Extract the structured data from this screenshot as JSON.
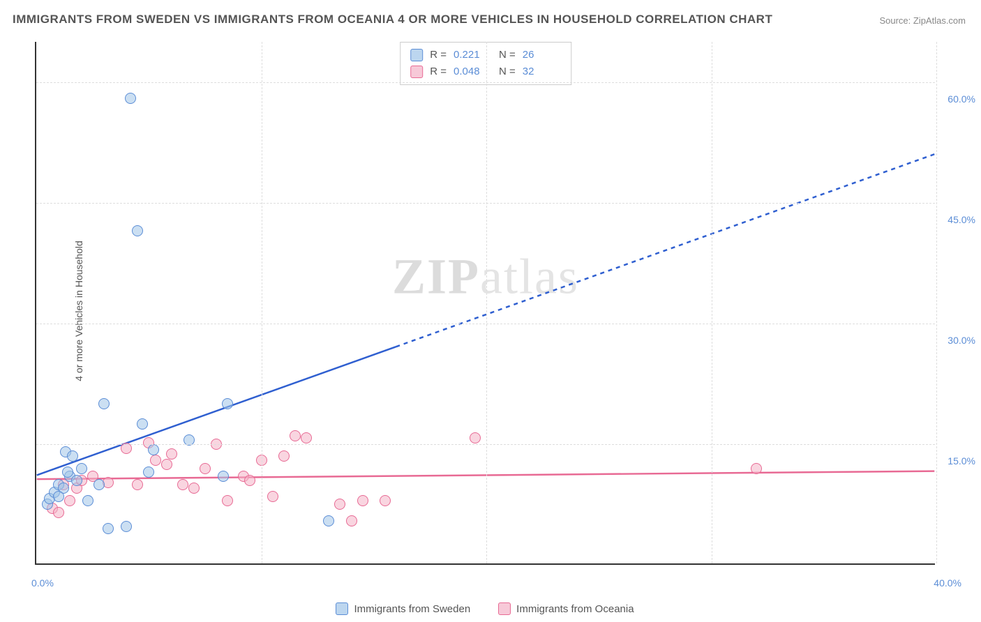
{
  "title": "IMMIGRANTS FROM SWEDEN VS IMMIGRANTS FROM OCEANIA 4 OR MORE VEHICLES IN HOUSEHOLD CORRELATION CHART",
  "source_prefix": "Source: ",
  "source_name": "ZipAtlas.com",
  "y_axis_label": "4 or more Vehicles in Household",
  "watermark_bold": "ZIP",
  "watermark_light": "atlas",
  "colors": {
    "sweden_fill": "rgba(160,197,232,0.55)",
    "sweden_stroke": "#5b8dd6",
    "oceania_fill": "rgba(244,178,199,0.55)",
    "oceania_stroke": "#e86a94",
    "sweden_line": "#2f5fd0",
    "oceania_line": "#e86a94",
    "grid": "#dddddd",
    "axis": "#333333",
    "text": "#555555",
    "tick_text": "#5b8dd6",
    "background": "#ffffff"
  },
  "chart": {
    "type": "scatter",
    "xlim": [
      0,
      40
    ],
    "ylim": [
      0,
      65
    ],
    "x_ticks": [
      0,
      10,
      20,
      30,
      40
    ],
    "x_tick_labels": [
      "0.0%",
      "",
      "",
      "",
      "40.0%"
    ],
    "y_ticks": [
      15,
      30,
      45,
      60
    ],
    "y_tick_labels": [
      "15.0%",
      "30.0%",
      "45.0%",
      "60.0%"
    ],
    "marker_size": 16,
    "marker_opacity": 0.55,
    "grid_dash": "4,4"
  },
  "stat_legend": {
    "r_label": "R =",
    "n_label": "N =",
    "rows": [
      {
        "series": "sweden",
        "r": "0.221",
        "n": "26"
      },
      {
        "series": "oceania",
        "r": "0.048",
        "n": "32"
      }
    ]
  },
  "bottom_legend": [
    {
      "series": "sweden",
      "label": "Immigrants from Sweden"
    },
    {
      "series": "oceania",
      "label": "Immigrants from Oceania"
    }
  ],
  "series": {
    "sweden": {
      "points": [
        [
          0.5,
          7.5
        ],
        [
          0.6,
          8.2
        ],
        [
          0.8,
          9.0
        ],
        [
          1.0,
          10.0
        ],
        [
          1.2,
          9.5
        ],
        [
          1.3,
          14.0
        ],
        [
          1.5,
          11.0
        ],
        [
          1.6,
          13.5
        ],
        [
          1.8,
          10.5
        ],
        [
          2.0,
          12.0
        ],
        [
          2.3,
          8.0
        ],
        [
          2.8,
          10.0
        ],
        [
          3.0,
          20.0
        ],
        [
          3.2,
          4.5
        ],
        [
          4.0,
          4.8
        ],
        [
          4.2,
          58.0
        ],
        [
          4.5,
          41.5
        ],
        [
          4.7,
          17.5
        ],
        [
          5.0,
          11.5
        ],
        [
          5.2,
          14.3
        ],
        [
          6.8,
          15.5
        ],
        [
          8.5,
          20.0
        ],
        [
          8.3,
          11.0
        ],
        [
          13.0,
          5.5
        ],
        [
          1.0,
          8.5
        ],
        [
          1.4,
          11.5
        ]
      ],
      "trend": {
        "x1": 0,
        "y1": 11.0,
        "x2_solid": 16.0,
        "y2_solid": 27.0,
        "x2_dash": 40.0,
        "y2_dash": 51.0,
        "width": 2.5
      }
    },
    "oceania": {
      "points": [
        [
          0.7,
          7.0
        ],
        [
          1.0,
          6.5
        ],
        [
          1.2,
          10.0
        ],
        [
          1.5,
          8.0
        ],
        [
          1.8,
          9.5
        ],
        [
          2.0,
          10.5
        ],
        [
          2.5,
          11.0
        ],
        [
          3.2,
          10.2
        ],
        [
          4.0,
          14.5
        ],
        [
          4.5,
          10.0
        ],
        [
          5.0,
          15.2
        ],
        [
          5.3,
          13.0
        ],
        [
          5.8,
          12.5
        ],
        [
          6.0,
          13.8
        ],
        [
          6.5,
          10.0
        ],
        [
          7.0,
          9.5
        ],
        [
          7.5,
          12.0
        ],
        [
          8.0,
          15.0
        ],
        [
          8.5,
          8.0
        ],
        [
          9.2,
          11.0
        ],
        [
          9.5,
          10.5
        ],
        [
          10.0,
          13.0
        ],
        [
          10.5,
          8.5
        ],
        [
          11.0,
          13.5
        ],
        [
          11.5,
          16.0
        ],
        [
          12.0,
          15.8
        ],
        [
          13.5,
          7.5
        ],
        [
          14.0,
          5.5
        ],
        [
          14.5,
          8.0
        ],
        [
          15.5,
          8.0
        ],
        [
          19.5,
          15.8
        ],
        [
          32.0,
          12.0
        ]
      ],
      "trend": {
        "x1": 0,
        "y1": 10.5,
        "x2_solid": 40.0,
        "y2_solid": 11.5,
        "x2_dash": 40.0,
        "y2_dash": 11.5,
        "width": 2.5
      }
    }
  }
}
